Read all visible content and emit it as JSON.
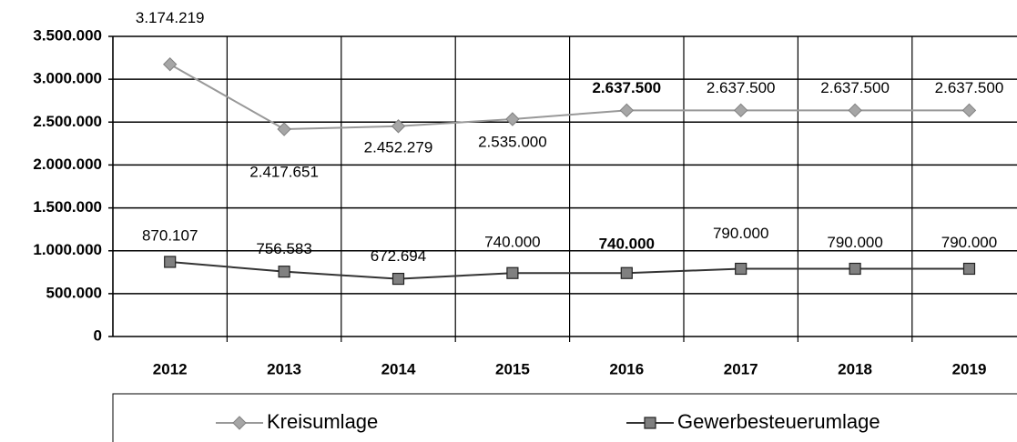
{
  "chart_data": {
    "type": "line",
    "categories": [
      "2012",
      "2013",
      "2014",
      "2015",
      "2016",
      "2017",
      "2018",
      "2019"
    ],
    "series": [
      {
        "name": "Kreisumlage",
        "color": "#999999",
        "marker": "diamond",
        "values": [
          3174219,
          2417651,
          2452279,
          2535000,
          2637500,
          2637500,
          2637500,
          2637500
        ],
        "value_labels": [
          "3.174.219",
          "2.417.651",
          "2.452.279",
          "2.535.000",
          "2.637.500",
          "2.637.500",
          "2.637.500",
          "2.637.500"
        ]
      },
      {
        "name": "Gewerbesteuerumlage",
        "color": "#333333",
        "marker": "square",
        "values": [
          870107,
          756583,
          672694,
          740000,
          740000,
          790000,
          790000,
          790000
        ],
        "value_labels": [
          "870.107",
          "756.583",
          "672.694",
          "740.000",
          "740.000",
          "790.000",
          "790.000",
          "790.000"
        ]
      }
    ],
    "ylim": [
      0,
      3500000
    ],
    "yticks": [
      {
        "value": 0,
        "label": "0"
      },
      {
        "value": 500000,
        "label": "500.000"
      },
      {
        "value": 1000000,
        "label": "1.000.000"
      },
      {
        "value": 1500000,
        "label": "1.500.000"
      },
      {
        "value": 2000000,
        "label": "2.000.000"
      },
      {
        "value": 2500000,
        "label": "2.500.000"
      },
      {
        "value": 3000000,
        "label": "3.000.000"
      },
      {
        "value": 3500000,
        "label": "3.500.000"
      }
    ],
    "grid": true,
    "highlight": "2016",
    "legend": "bottom"
  }
}
